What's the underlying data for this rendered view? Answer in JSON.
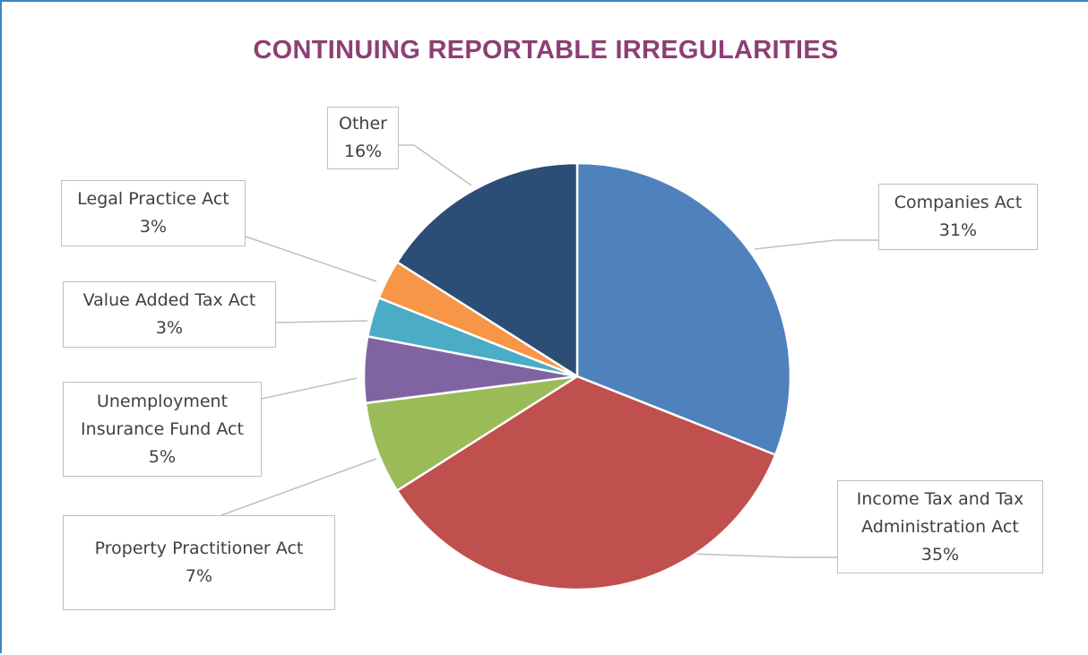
{
  "chart_data": {
    "type": "pie",
    "title": "CONTINUING REPORTABLE IRREGULARITIES",
    "slices": [
      {
        "name": "Companies Act",
        "lines": [
          "Companies Act"
        ],
        "value": 31,
        "value_label": "31%",
        "color": "#4f81bd"
      },
      {
        "name": "Income Tax and Tax Administration Act",
        "lines": [
          "Income Tax and Tax",
          "Administration Act"
        ],
        "value": 35,
        "value_label": "35%",
        "color": "#c0504d"
      },
      {
        "name": "Property Practitioner Act",
        "lines": [
          "Property Practitioner Act"
        ],
        "value": 7,
        "value_label": "7%",
        "color": "#9bbb59"
      },
      {
        "name": "Unemployment Insurance Fund Act",
        "lines": [
          "Unemployment",
          "Insurance Fund Act"
        ],
        "value": 5,
        "value_label": "5%",
        "color": "#8064a2"
      },
      {
        "name": "Value Added Tax Act",
        "lines": [
          "Value Added Tax Act"
        ],
        "value": 3,
        "value_label": "3%",
        "color": "#4bacc6"
      },
      {
        "name": "Legal Practice Act",
        "lines": [
          "Legal Practice Act"
        ],
        "value": 3,
        "value_label": "3%",
        "color": "#f79646"
      },
      {
        "name": "Other",
        "lines": [
          "Other"
        ],
        "value": 16,
        "value_label": "16%",
        "color": "#2c4d75"
      }
    ],
    "legend": "none",
    "data_labels": "callouts with leader lines"
  }
}
